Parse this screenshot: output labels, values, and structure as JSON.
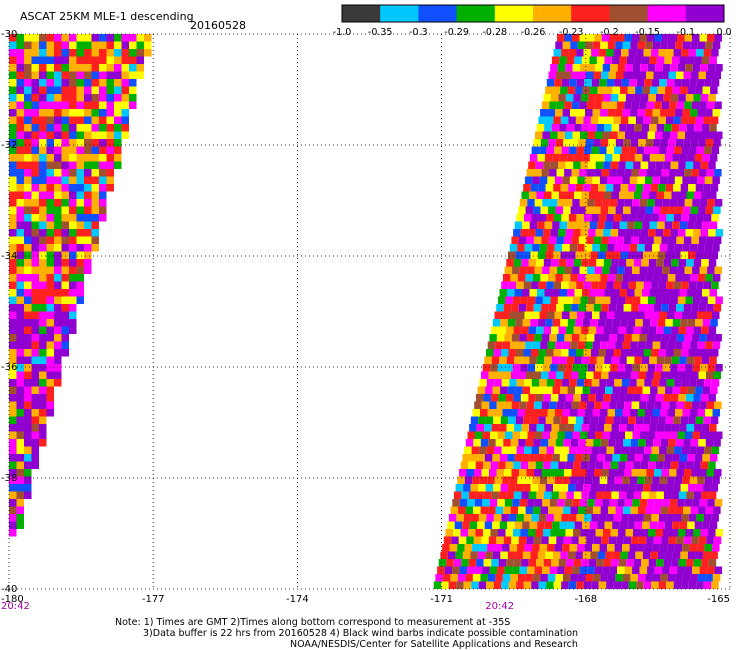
{
  "chart_data": {
    "type": "heatmap",
    "title": "ASCAT 25KM MLE-1 descending",
    "date": "20160528",
    "x_ticks": [
      "-180",
      "-177",
      "-174",
      "-171",
      "-168",
      "-165"
    ],
    "x_values": [
      -180,
      -177,
      -174,
      -171,
      -168,
      -165
    ],
    "y_ticks": [
      "-30",
      "-32",
      "-34",
      "-36",
      "-38",
      "-40"
    ],
    "y_values": [
      -30,
      -32,
      -34,
      -36,
      -38,
      -40
    ],
    "xlim": [
      -180,
      -165
    ],
    "ylim": [
      -40,
      -30
    ],
    "grid": "dotted",
    "time_labels": [
      {
        "text": "20:42",
        "lon": -180
      },
      {
        "text": "20:42",
        "lon": -169.8
      }
    ],
    "colorbar": {
      "tick_labels": [
        "-1.0",
        "-0.35",
        "-0.3",
        "-0.29",
        "-0.28",
        "-0.26",
        "-0.23",
        "-0.2",
        "-0.15",
        "-0.1",
        "0.0"
      ],
      "colors": [
        "#3a3a3a",
        "#00c8ff",
        "#1050ff",
        "#00b000",
        "#ffff00",
        "#ffb000",
        "#ff2020",
        "#a05030",
        "#ff00ff",
        "#9000d0"
      ]
    },
    "swaths": [
      {
        "name": "west",
        "lat_top": -30,
        "lat_bottom": -39.0,
        "lon_west": -180,
        "east_top": -177.1,
        "east_bottom": -179.9
      },
      {
        "name": "east",
        "lat_top": -30,
        "lat_bottom": -40,
        "lon_east": -165.3,
        "west_top": -168.6,
        "west_bottom": -171.2
      }
    ]
  },
  "notes": {
    "line1": "Note: 1) Times are GMT 2)Times along bottom correspond to measurement at -35S",
    "line2": "3)Data buffer is 22 hrs from 20160528 4) Black wind barbs indicate possible contamination",
    "line3": "NOAA/NESDIS/Center for Satellite Applications and Research"
  }
}
